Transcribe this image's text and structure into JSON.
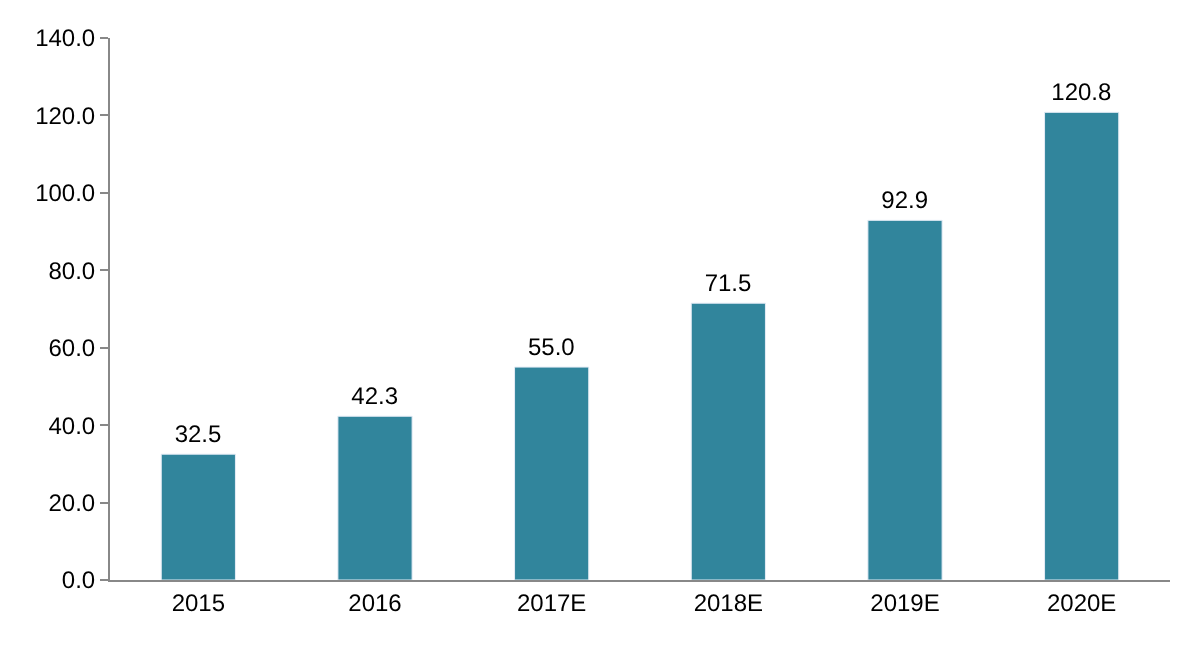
{
  "chart_data": {
    "type": "bar",
    "categories": [
      "2015",
      "2016",
      "2017E",
      "2018E",
      "2019E",
      "2020E"
    ],
    "values": [
      32.5,
      42.3,
      55.0,
      71.5,
      92.9,
      120.8
    ],
    "value_labels": [
      "32.5",
      "42.3",
      "55.0",
      "71.5",
      "92.9",
      "120.8"
    ],
    "color": "#31859c",
    "ylim": [
      0,
      140
    ],
    "yticks": [
      {
        "value": 0,
        "label": "0.0"
      },
      {
        "value": 20,
        "label": "20.0"
      },
      {
        "value": 40,
        "label": "40.0"
      },
      {
        "value": 60,
        "label": "60.0"
      },
      {
        "value": 80,
        "label": "80.0"
      },
      {
        "value": 100,
        "label": "100.0"
      },
      {
        "value": 120,
        "label": "120.0"
      },
      {
        "value": 140,
        "label": "140.0"
      }
    ],
    "legend": false
  }
}
